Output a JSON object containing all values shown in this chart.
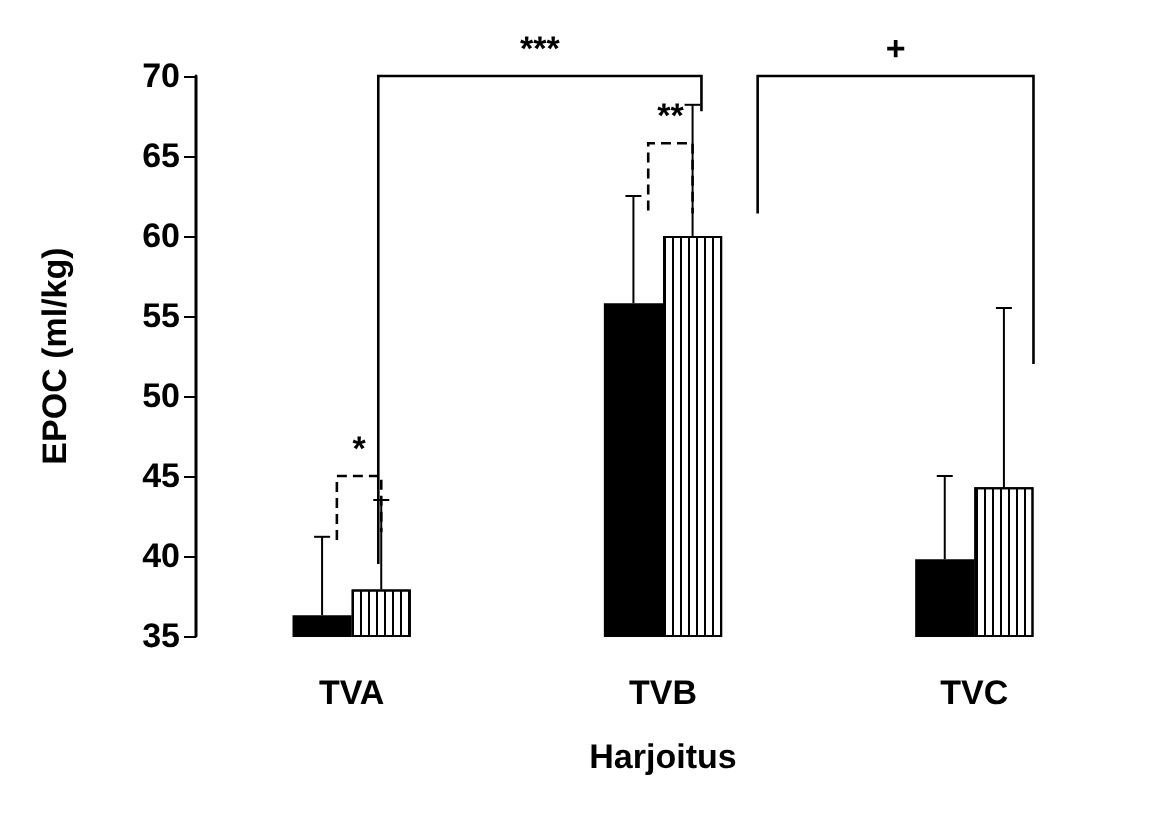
{
  "chart_data": {
    "type": "bar",
    "xlabel": "Harjoitus",
    "ylabel": "EPOC (ml/kg)",
    "categories": [
      "TVA",
      "TVB",
      "TVC"
    ],
    "series": [
      {
        "color": "#000000",
        "values": [
          36.3,
          55.8,
          39.8
        ],
        "errors": [
          [
            36.3,
            41.2
          ],
          [
            55.8,
            62.5
          ],
          [
            39.8,
            45.0
          ]
        ]
      },
      {
        "color": "#ffffff",
        "values": [
          37.9,
          60.0,
          44.3
        ],
        "errors": [
          [
            37.9,
            43.5
          ],
          [
            60.0,
            68.2
          ],
          [
            44.3,
            55.5
          ]
        ]
      }
    ],
    "ylim": [
      35,
      70
    ],
    "yticks": [
      35,
      40,
      45,
      50,
      55,
      60,
      65,
      70
    ],
    "grid": false,
    "annotations": [
      "*",
      "**",
      "***",
      "+"
    ]
  }
}
